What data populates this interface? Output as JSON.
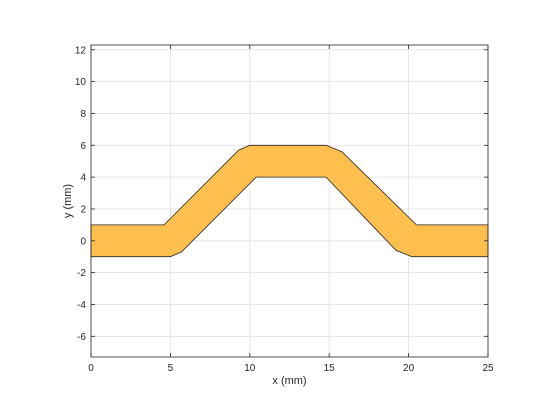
{
  "chart_data": {
    "type": "area",
    "title": "",
    "xlabel": "x (mm)",
    "ylabel": "y (mm)",
    "xlim": [
      0,
      25
    ],
    "ylim": [
      -7.3,
      12.3
    ],
    "x_ticks": [
      0,
      5,
      10,
      15,
      20,
      25
    ],
    "y_ticks": [
      -6,
      -4,
      -2,
      0,
      2,
      4,
      6,
      8,
      10,
      12
    ],
    "grid": true,
    "box": true,
    "fill_color": "#FFBF4F",
    "edge_color": "#262626",
    "shapes": [
      {
        "points": [
          [
            0,
            1
          ],
          [
            4.6,
            1
          ],
          [
            9.3,
            5.7
          ],
          [
            10,
            6
          ],
          [
            14.8,
            6
          ],
          [
            15.8,
            5.6
          ],
          [
            20.5,
            1
          ],
          [
            25,
            1
          ],
          [
            25,
            -1
          ],
          [
            20.2,
            -1
          ],
          [
            19.2,
            -0.6
          ],
          [
            14.8,
            4
          ],
          [
            10.4,
            4
          ],
          [
            5.7,
            -0.7
          ],
          [
            5,
            -1
          ],
          [
            0,
            -1
          ]
        ]
      }
    ]
  }
}
